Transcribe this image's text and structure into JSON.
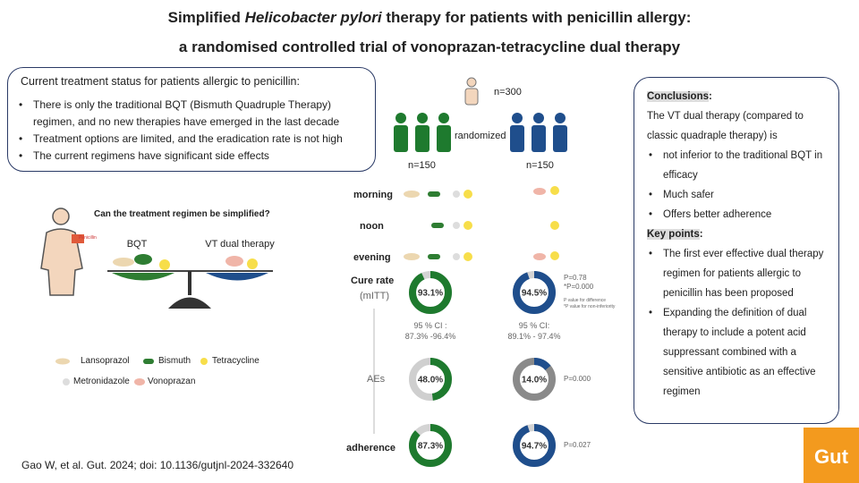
{
  "title": {
    "line1_start": "Simplified",
    "line1_italic": "Helicobacter pylori",
    "line1_end": "therapy for patients with penicillin allergy:",
    "line2": "a randomised controlled trial of vonoprazan-tetracycline dual therapy"
  },
  "status": {
    "heading": "Current treatment status for patients allergic to penicillin:",
    "items": [
      "There is only the traditional BQT (Bismuth Quadruple Therapy) regimen, and no new therapies have emerged in the last decade",
      "Treatment options are limited, and the eradication rate is not high",
      "The current regimens have significant side effects"
    ]
  },
  "question": "Can the treatment regimen be simplified?",
  "regimens": {
    "left": "BQT",
    "right": "VT dual therapy"
  },
  "penicillin_label": "Penicillin",
  "legend": [
    "Lansoprazol",
    "Bismuth",
    "Tetracycline",
    "Metronidazole",
    "Vonoprazan"
  ],
  "citation": "Gao W, et al. Gut. 2024; doi: 10.1136/gutjnl-2024-332640",
  "trial": {
    "total": "n=300",
    "randomized": "randomized",
    "n_left": "n=150",
    "n_right": "n=150",
    "times": [
      "morning",
      "noon",
      "evening"
    ]
  },
  "outcomes": [
    {
      "label": "Cure rate",
      "sub": "(mITT)",
      "left": {
        "value": 93.1,
        "label": "93.1%"
      },
      "right": {
        "value": 94.5,
        "label": "94.5%"
      },
      "ci_left": [
        "95 % CI :",
        "87.3% -96.4%"
      ],
      "ci_right": [
        "95 % CI:",
        "89.1% - 97.4%"
      ],
      "p": [
        "P=0.78",
        "*P=0.000"
      ],
      "notes": [
        "P value for difference",
        "*P value for non-inferiority"
      ]
    },
    {
      "label": "AEs",
      "left": {
        "value": 48.0,
        "label": "48.0%"
      },
      "right": {
        "value": 14.0,
        "label": "14.0%"
      },
      "p": [
        "P=0.000"
      ]
    },
    {
      "label": "adherence",
      "left": {
        "value": 87.3,
        "label": "87.3%"
      },
      "right": {
        "value": 94.7,
        "label": "94.7%"
      },
      "p": [
        "P=0.027"
      ]
    }
  ],
  "conclusions": {
    "heading": "Conclusions",
    "intro": "The VT dual therapy (compared to classic quadraple therapy) is",
    "items": [
      "not inferior to the traditional BQT in efficacy",
      "Much safer",
      "Offers better adherence"
    ],
    "key_heading": "Key points",
    "key_items": [
      "The first ever effective dual therapy regimen for patients allergic to penicillin has been proposed",
      "Expanding the definition of dual therapy to include a potent acid suppressant combined with a sensitive antibiotic as an effective regimen"
    ]
  },
  "logo": "Gut"
}
